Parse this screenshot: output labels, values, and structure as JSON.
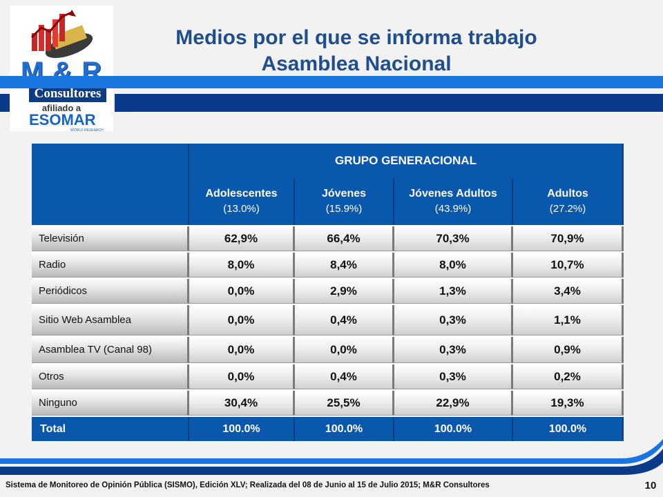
{
  "logo": {
    "brand": "M & R",
    "consultores": "Consultores",
    "afiliado": "afiliado a",
    "esomar": "ESOMAR",
    "esomar_sub": "WORLD RESEARCH"
  },
  "slide": {
    "title_line1": "Medios por el que se informa trabajo",
    "title_line2": "Asamblea Nacional",
    "page_number": "10",
    "footer": "Sistema de Monitoreo de Opinión Pública (SISMO), Edición XLV; Realizada del 08 de Junio al 15 de Julio 2015; M&R Consultores"
  },
  "colors": {
    "header_blue": "#0a58ad",
    "title_blue": "#1f4e8c",
    "band_dark": "#0b3a8a",
    "band_light": "#1976e0"
  },
  "table": {
    "group_header": "GRUPO GENERACIONAL",
    "columns": [
      {
        "name": "Adolescentes",
        "share": "(13.0%)"
      },
      {
        "name": "Jóvenes",
        "share": "(15.9%)"
      },
      {
        "name": "Jóvenes Adultos",
        "share": "(43.9%)"
      },
      {
        "name": "Adultos",
        "share": "(27.2%)"
      }
    ],
    "rows": [
      {
        "label": "Televisión",
        "values": [
          "62,9%",
          "66,4%",
          "70,3%",
          "70,9%"
        ]
      },
      {
        "label": "Radio",
        "values": [
          "8,0%",
          "8,4%",
          "8,0%",
          "10,7%"
        ]
      },
      {
        "label": "Periódicos",
        "values": [
          "0,0%",
          "2,9%",
          "1,3%",
          "3,4%"
        ]
      },
      {
        "label": "Sitio Web Asamblea",
        "values": [
          "0,0%",
          "0,4%",
          "0,3%",
          "1,1%"
        ]
      },
      {
        "label": "Asamblea TV (Canal 98)",
        "values": [
          "0,0%",
          "0,0%",
          "0,3%",
          "0,9%"
        ]
      },
      {
        "label": "Otros",
        "values": [
          "0,0%",
          "0,4%",
          "0,3%",
          "0,2%"
        ]
      },
      {
        "label": "Ninguno",
        "values": [
          "30,4%",
          "25,5%",
          "22,9%",
          "19,3%"
        ]
      }
    ],
    "total": {
      "label": "Total",
      "values": [
        "100.0%",
        "100.0%",
        "100.0%",
        "100.0%"
      ]
    }
  }
}
